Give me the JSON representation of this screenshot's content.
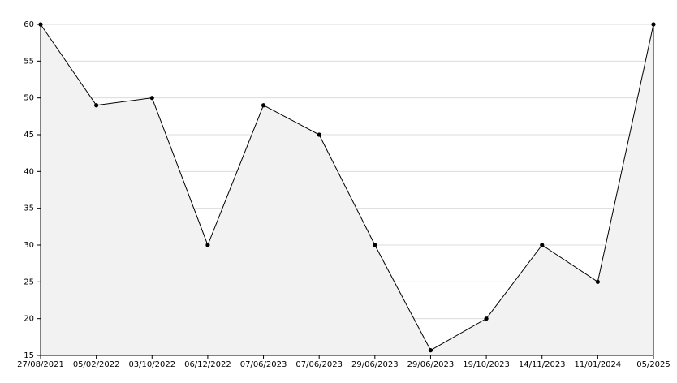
{
  "chart_data": {
    "type": "area",
    "categories": [
      "27/08/2021",
      "05/02/2022",
      "03/10/2022",
      "06/12/2022",
      "07/06/2023",
      "07/06/2023",
      "29/06/2023",
      "29/06/2023",
      "19/10/2023",
      "14/11/2023",
      "11/01/2024",
      "05/2025"
    ],
    "values": [
      60,
      49,
      50,
      30,
      49,
      45,
      30,
      15.7,
      20,
      30,
      25,
      60
    ],
    "color": "#000000",
    "fill": "#f2f2f2",
    "ylim": [
      15,
      60
    ],
    "yticks": [
      15,
      20,
      25,
      30,
      35,
      40,
      45,
      50,
      55,
      60
    ],
    "grid": true
  }
}
